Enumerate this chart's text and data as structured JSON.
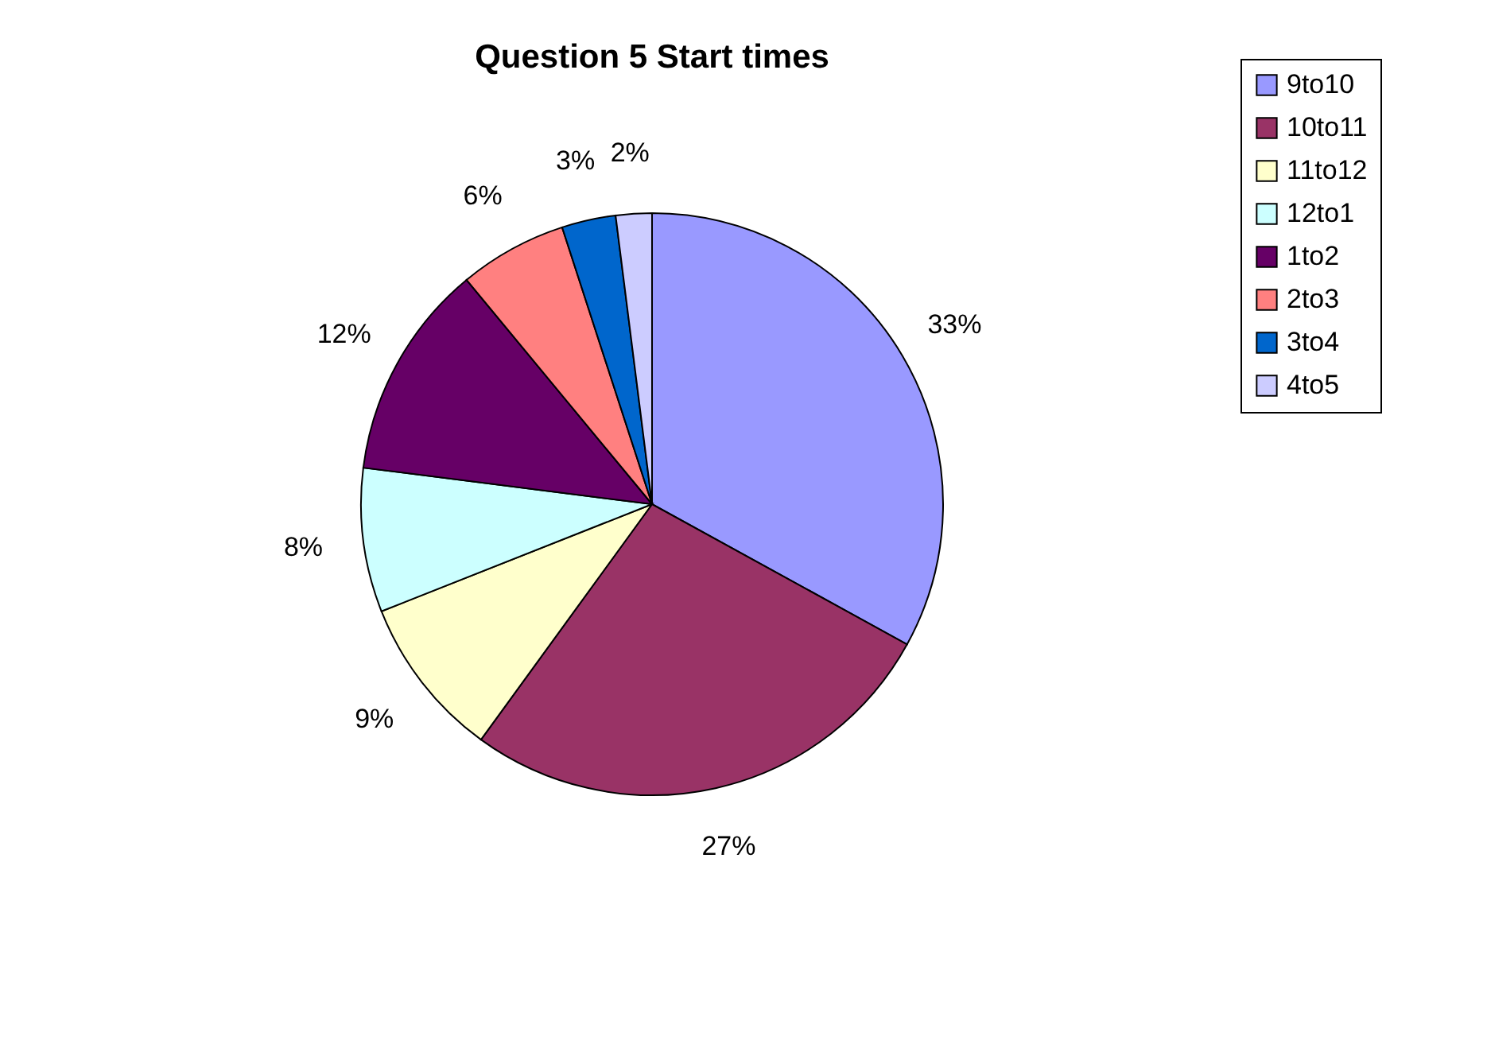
{
  "chart_data": {
    "type": "pie",
    "title": "Question 5 Start times",
    "categories": [
      "9to10",
      "10to11",
      "11to12",
      "12to1",
      "1to2",
      "2to3",
      "3to4",
      "4to5"
    ],
    "values": [
      33,
      27,
      9,
      8,
      12,
      6,
      3,
      2
    ],
    "colors": [
      "#9999ff",
      "#993366",
      "#ffffcc",
      "#ccffff",
      "#660066",
      "#ff8080",
      "#0066cc",
      "#ccccff"
    ],
    "value_labels": [
      "33%",
      "27%",
      "9%",
      "8%",
      "12%",
      "6%",
      "3%",
      "2%"
    ],
    "legend": "right"
  }
}
